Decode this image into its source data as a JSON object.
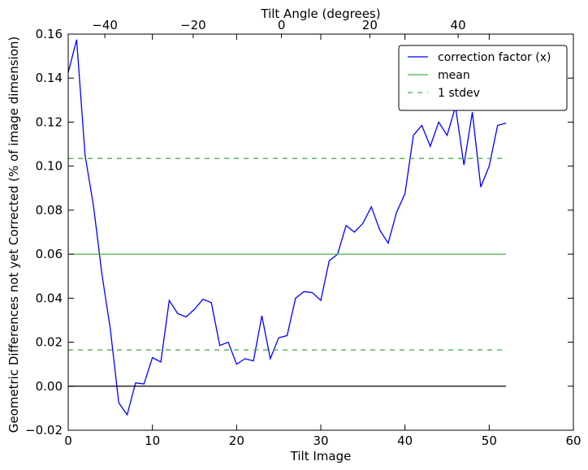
{
  "chart_data": {
    "type": "line",
    "title": "",
    "xlabel": "Tilt Image",
    "ylabel": "Geometric Differences not yet Corrected (% of image dimension)",
    "top_xlabel": "Tilt Angle (degrees)",
    "xlim": [
      0,
      60
    ],
    "ylim": [
      -0.02,
      0.16
    ],
    "top_xlim": [
      -48.3,
      66.1
    ],
    "x_ticks": [
      "0",
      "10",
      "20",
      "30",
      "40",
      "50",
      "60"
    ],
    "x_tick_values": [
      0,
      10,
      20,
      30,
      40,
      50,
      60
    ],
    "y_ticks": [
      "−0.02",
      "0.00",
      "0.02",
      "0.04",
      "0.06",
      "0.08",
      "0.10",
      "0.12",
      "0.14",
      "0.16"
    ],
    "y_tick_values": [
      -0.02,
      0.0,
      0.02,
      0.04,
      0.06,
      0.08,
      0.1,
      0.12,
      0.14,
      0.16
    ],
    "top_x_ticks": [
      "−40",
      "−20",
      "0",
      "20",
      "40"
    ],
    "top_x_tick_values": [
      -40,
      -20,
      0,
      20,
      40
    ],
    "grid": false,
    "legend_position": "top-right",
    "series": [
      {
        "name": "correction factor (x)",
        "color": "#0000ff",
        "style": "solid",
        "x": [
          0,
          1,
          2,
          3,
          4,
          5,
          6,
          7,
          8,
          9,
          10,
          11,
          12,
          13,
          14,
          15,
          16,
          17,
          18,
          19,
          20,
          21,
          22,
          23,
          24,
          25,
          26,
          27,
          28,
          29,
          30,
          31,
          32,
          33,
          34,
          35,
          36,
          37,
          38,
          39,
          40,
          41,
          42,
          43,
          44,
          45,
          46,
          47,
          48,
          49,
          50,
          51,
          52
        ],
        "y": [
          0.1425,
          0.1575,
          0.105,
          0.082,
          0.051,
          0.026,
          -0.0075,
          -0.013,
          0.0015,
          0.001,
          0.013,
          0.011,
          0.039,
          0.033,
          0.0315,
          0.035,
          0.0395,
          0.038,
          0.0185,
          0.02,
          0.01,
          0.0125,
          0.0115,
          0.032,
          0.0125,
          0.022,
          0.023,
          0.04,
          0.043,
          0.0425,
          0.039,
          0.057,
          0.06,
          0.073,
          0.07,
          0.074,
          0.0815,
          0.071,
          0.065,
          0.079,
          0.0875,
          0.114,
          0.1185,
          0.109,
          0.12,
          0.114,
          0.127,
          0.1005,
          0.1245,
          0.0905,
          0.1,
          0.1185,
          0.1195
        ]
      },
      {
        "name": "mean",
        "color": "#4daf4a",
        "style": "solid",
        "x": [
          0,
          52
        ],
        "y": [
          0.06,
          0.06
        ]
      },
      {
        "name": "1 stdev",
        "color": "#4daf4a",
        "style": "dashed",
        "x": [
          0,
          52
        ],
        "y": [
          0.1035,
          0.1035
        ]
      },
      {
        "name": "",
        "color": "#4daf4a",
        "style": "dashed",
        "x": [
          0,
          52
        ],
        "y": [
          0.0165,
          0.0165
        ]
      },
      {
        "name": "",
        "color": "#000000",
        "style": "solid",
        "x": [
          0,
          52
        ],
        "y": [
          0.0,
          0.0
        ]
      }
    ]
  }
}
